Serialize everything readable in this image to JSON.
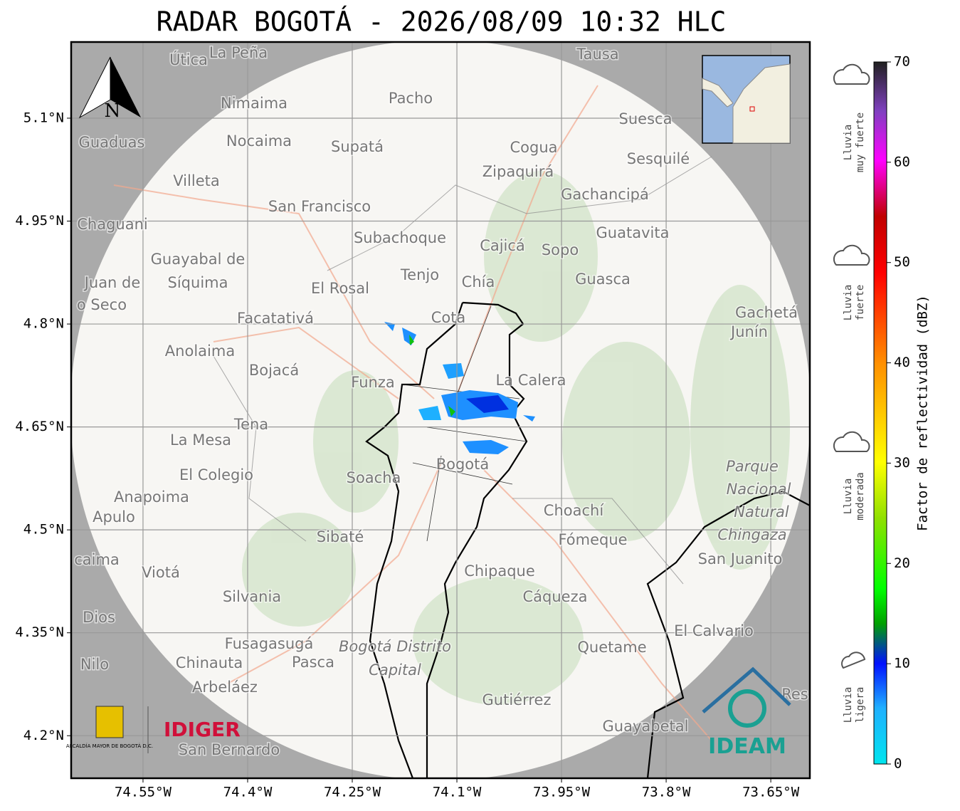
{
  "title": "RADAR BOGOTÁ - 2026/08/09 10:32 HLC",
  "map": {
    "xlim": [
      -74.653,
      -73.594
    ],
    "ylim": [
      4.138,
      5.211
    ],
    "xticks": [
      {
        "value": -74.55,
        "label": "74.55°W"
      },
      {
        "value": -74.4,
        "label": "74.4°W"
      },
      {
        "value": -74.25,
        "label": "74.25°W"
      },
      {
        "value": -74.1,
        "label": "74.1°W"
      },
      {
        "value": -73.95,
        "label": "73.95°W"
      },
      {
        "value": -73.8,
        "label": "73.8°W"
      },
      {
        "value": -73.65,
        "label": "73.65°W"
      }
    ],
    "yticks": [
      {
        "value": 5.1,
        "label": "5.1°N"
      },
      {
        "value": 4.95,
        "label": "4.95°N"
      },
      {
        "value": 4.8,
        "label": "4.8°N"
      },
      {
        "value": 4.65,
        "label": "4.65°N"
      },
      {
        "value": 4.5,
        "label": "4.5°N"
      },
      {
        "value": 4.35,
        "label": "4.35°N"
      },
      {
        "value": 4.2,
        "label": "4.2°N"
      }
    ],
    "north": "N",
    "places": [
      "Útica",
      "La Peña",
      "Tausa",
      "Pacho",
      "Nimaima",
      "Guaduas",
      "Nocaima",
      "Supatá",
      "Cogua",
      "Suesca",
      "Sesquilé",
      "Zipaquirá",
      "Villeta",
      "Gachancipá",
      "San Francisco",
      "Chaguani",
      "Guatavita",
      "Subachoque",
      "Cajicá",
      "Sopo",
      "Guayabal de",
      "Tenjo",
      "Chía",
      "Guasca",
      "Juan de",
      "Síquima",
      "El Rosal",
      "o Seco",
      "Facatativá",
      "Cota",
      "Gachetá",
      "Junín",
      "Anolaima",
      "Bojacá",
      "Funza",
      "La Calera",
      "Tena",
      "La Mesa",
      "El Colegio",
      "Soacha",
      "Bogotá",
      "Parque",
      "Nacional",
      "Natural",
      "Chingaza",
      "Anapoima",
      "Apulo",
      "Choachí",
      "Sibaté",
      "Fómeque",
      "San Juanito",
      "caima",
      "Viotá",
      "Chipaque",
      "Silvania",
      "Cáqueza",
      "Dios",
      "El Calvario",
      "Fusagasugá",
      "Bogotá Distrito",
      "Quetame",
      "Nilo",
      "Chinauta",
      "Pasca",
      "Capital",
      "Arbeláez",
      "Gutiérrez",
      "Res",
      "Guayabetal",
      "San Bernardo"
    ],
    "logos": {
      "bogota": "ALCALDÍA MAYOR DE BOGOTÁ D.C.",
      "idiger": "IDIGER",
      "ideam": "IDEAM"
    }
  },
  "colorbar": {
    "label": "Factor de reflectividad (dBZ)",
    "lim": [
      0,
      70
    ],
    "ticks": [
      0,
      10,
      20,
      30,
      40,
      50,
      60,
      70
    ],
    "rain": [
      [
        "Lluvia",
        "muy fuerte"
      ],
      [
        "Lluvia",
        "fuerte"
      ],
      [
        "Lluvia",
        "moderada"
      ],
      [
        "Lluvia",
        "ligera"
      ]
    ]
  }
}
